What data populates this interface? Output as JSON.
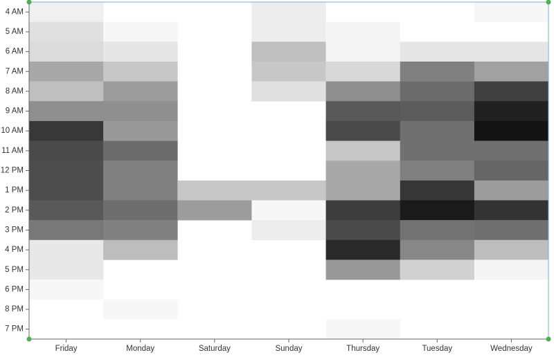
{
  "chart_data": {
    "type": "heatmap",
    "x_categories": [
      "Friday",
      "Monday",
      "Saturday",
      "Sunday",
      "Thursday",
      "Tuesday",
      "Wednesday"
    ],
    "y_categories": [
      "4 AM",
      "5 AM",
      "6 AM",
      "7 AM",
      "8 AM",
      "9 AM",
      "10 AM",
      "11 AM",
      "12 PM",
      "1 PM",
      "2 PM",
      "3 PM",
      "4 PM",
      "5 PM",
      "6 PM",
      "8 PM",
      "7 PM"
    ],
    "values": [
      [
        6,
        null,
        null,
        7,
        null,
        null,
        3
      ],
      [
        12,
        3,
        null,
        7,
        4,
        null,
        null
      ],
      [
        14,
        10,
        null,
        25,
        4,
        10,
        10
      ],
      [
        34,
        22,
        null,
        22,
        15,
        50,
        37
      ],
      [
        25,
        39,
        null,
        12,
        44,
        58,
        75
      ],
      [
        44,
        44,
        null,
        null,
        65,
        64,
        87
      ],
      [
        78,
        40,
        null,
        null,
        71,
        56,
        92
      ],
      [
        71,
        58,
        null,
        null,
        22,
        56,
        56
      ],
      [
        70,
        50,
        null,
        null,
        34,
        50,
        60
      ],
      [
        70,
        50,
        22,
        22,
        34,
        79,
        39
      ],
      [
        65,
        57,
        39,
        3,
        76,
        90,
        80
      ],
      [
        53,
        50,
        null,
        7,
        71,
        55,
        56
      ],
      [
        9,
        26,
        null,
        null,
        84,
        47,
        26
      ],
      [
        9,
        null,
        null,
        null,
        40,
        18,
        4
      ],
      [
        3,
        null,
        null,
        null,
        null,
        null,
        null
      ],
      [
        null,
        3,
        null,
        null,
        null,
        null,
        null
      ],
      [
        null,
        null,
        null,
        null,
        3,
        null,
        null
      ]
    ],
    "value_range": [
      0,
      100
    ],
    "color_scale": [
      "#ffffff",
      "#000000"
    ]
  }
}
